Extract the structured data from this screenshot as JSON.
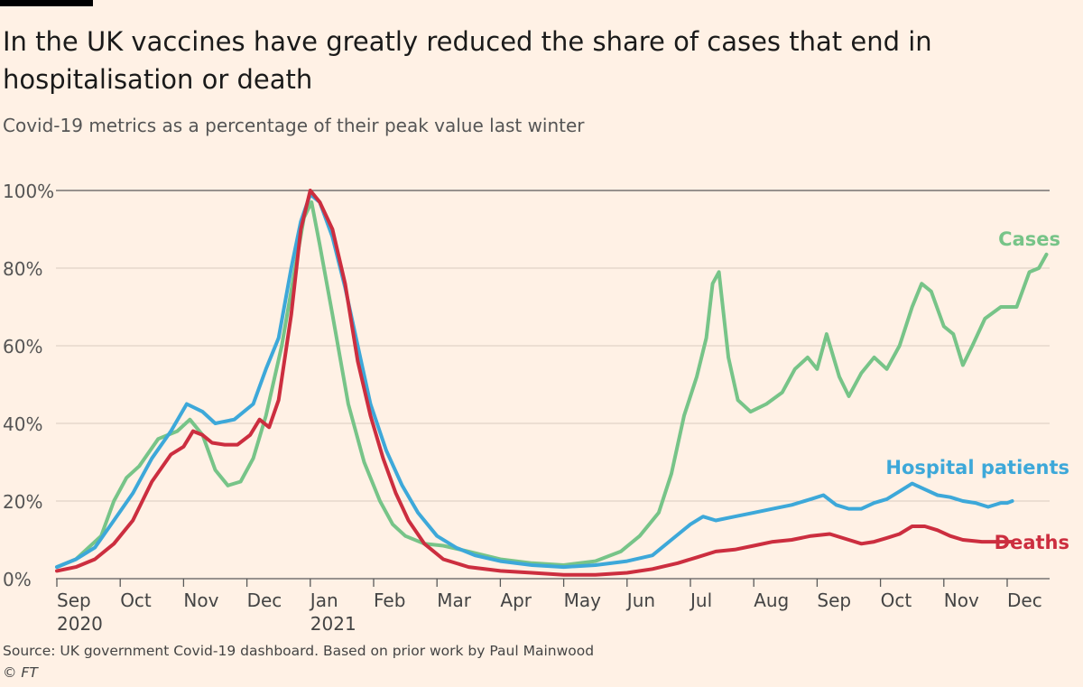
{
  "title": "In the UK vaccines have greatly reduced the share of cases that end in hospitalisation or death",
  "subtitle": "Covid-19 metrics as a percentage of their peak value last winter",
  "source": "Source: UK government Covid-19 dashboard. Based on prior work by Paul Mainwood",
  "credit": "© FT",
  "chart_data": {
    "type": "line",
    "x_unit": "month index (0 = 1 Sep 2020)",
    "xlim": [
      0,
      15.6
    ],
    "ylim": [
      0,
      100
    ],
    "grid": true,
    "y_ticks": [
      {
        "value": 0,
        "label": "0%"
      },
      {
        "value": 20,
        "label": "20%"
      },
      {
        "value": 40,
        "label": "40%"
      },
      {
        "value": 60,
        "label": "60%"
      },
      {
        "value": 80,
        "label": "80%"
      },
      {
        "value": 100,
        "label": "100%"
      }
    ],
    "x_ticks": [
      {
        "value": 0,
        "label": "Sep",
        "year": "2020"
      },
      {
        "value": 1,
        "label": "Oct"
      },
      {
        "value": 2,
        "label": "Nov"
      },
      {
        "value": 3,
        "label": "Dec"
      },
      {
        "value": 4,
        "label": "Jan",
        "year": "2021"
      },
      {
        "value": 5,
        "label": "Feb"
      },
      {
        "value": 6,
        "label": "Mar"
      },
      {
        "value": 7,
        "label": "Apr"
      },
      {
        "value": 8,
        "label": "May"
      },
      {
        "value": 9,
        "label": "Jun"
      },
      {
        "value": 10,
        "label": "Jul"
      },
      {
        "value": 11,
        "label": "Aug"
      },
      {
        "value": 12,
        "label": "Sep"
      },
      {
        "value": 13,
        "label": "Oct"
      },
      {
        "value": 14,
        "label": "Nov"
      },
      {
        "value": 15,
        "label": "Dec"
      }
    ],
    "series": [
      {
        "name": "Cases",
        "color": "#77C488",
        "label_position": "end-above",
        "points": [
          [
            0,
            3
          ],
          [
            0.3,
            5
          ],
          [
            0.7,
            11
          ],
          [
            0.9,
            20
          ],
          [
            1.1,
            26
          ],
          [
            1.3,
            29
          ],
          [
            1.6,
            36
          ],
          [
            1.9,
            38
          ],
          [
            2.1,
            41
          ],
          [
            2.3,
            37
          ],
          [
            2.5,
            28
          ],
          [
            2.7,
            24
          ],
          [
            2.9,
            25
          ],
          [
            3.1,
            31
          ],
          [
            3.3,
            42
          ],
          [
            3.55,
            60
          ],
          [
            3.75,
            79
          ],
          [
            3.9,
            93
          ],
          [
            4.02,
            97
          ],
          [
            4.15,
            86
          ],
          [
            4.35,
            68
          ],
          [
            4.6,
            45
          ],
          [
            4.85,
            30
          ],
          [
            5.1,
            20
          ],
          [
            5.3,
            14
          ],
          [
            5.5,
            11
          ],
          [
            5.8,
            9
          ],
          [
            6.1,
            8.5
          ],
          [
            6.5,
            7
          ],
          [
            7,
            5
          ],
          [
            7.5,
            4
          ],
          [
            8,
            3.5
          ],
          [
            8.5,
            4.5
          ],
          [
            8.9,
            7
          ],
          [
            9.2,
            11
          ],
          [
            9.5,
            17
          ],
          [
            9.7,
            27
          ],
          [
            9.9,
            42
          ],
          [
            10.1,
            52
          ],
          [
            10.25,
            62
          ],
          [
            10.35,
            76
          ],
          [
            10.45,
            79
          ],
          [
            10.6,
            57
          ],
          [
            10.75,
            46
          ],
          [
            10.95,
            43
          ],
          [
            11.2,
            45
          ],
          [
            11.45,
            48
          ],
          [
            11.65,
            54
          ],
          [
            11.85,
            57
          ],
          [
            12,
            54
          ],
          [
            12.15,
            63
          ],
          [
            12.35,
            52
          ],
          [
            12.5,
            47
          ],
          [
            12.7,
            53
          ],
          [
            12.9,
            57
          ],
          [
            13.1,
            54
          ],
          [
            13.3,
            60
          ],
          [
            13.5,
            70
          ],
          [
            13.65,
            76
          ],
          [
            13.8,
            74
          ],
          [
            14,
            65
          ],
          [
            14.15,
            63
          ],
          [
            14.3,
            55
          ],
          [
            14.45,
            60
          ],
          [
            14.65,
            67
          ],
          [
            14.9,
            70
          ],
          [
            15.15,
            70
          ],
          [
            15.35,
            79
          ],
          [
            15.5,
            80
          ],
          [
            15.62,
            83.5
          ]
        ]
      },
      {
        "name": "Hospital patients",
        "color": "#3DA8D9",
        "label_position": "end-above",
        "points": [
          [
            0,
            3
          ],
          [
            0.3,
            5
          ],
          [
            0.6,
            8
          ],
          [
            0.9,
            15
          ],
          [
            1.2,
            22
          ],
          [
            1.5,
            31
          ],
          [
            1.8,
            38
          ],
          [
            2.05,
            45
          ],
          [
            2.3,
            43
          ],
          [
            2.5,
            40
          ],
          [
            2.8,
            41
          ],
          [
            3.1,
            45
          ],
          [
            3.3,
            54
          ],
          [
            3.5,
            62
          ],
          [
            3.7,
            80
          ],
          [
            3.85,
            92
          ],
          [
            4,
            99
          ],
          [
            4.15,
            97
          ],
          [
            4.35,
            88
          ],
          [
            4.55,
            75
          ],
          [
            4.75,
            60
          ],
          [
            4.95,
            45
          ],
          [
            5.2,
            33
          ],
          [
            5.45,
            24
          ],
          [
            5.7,
            17
          ],
          [
            6,
            11
          ],
          [
            6.3,
            8
          ],
          [
            6.6,
            6
          ],
          [
            7,
            4.5
          ],
          [
            7.5,
            3.5
          ],
          [
            8,
            3
          ],
          [
            8.5,
            3.5
          ],
          [
            9,
            4.5
          ],
          [
            9.4,
            6
          ],
          [
            9.7,
            10
          ],
          [
            10,
            14
          ],
          [
            10.2,
            16
          ],
          [
            10.4,
            15
          ],
          [
            10.7,
            16
          ],
          [
            11,
            17
          ],
          [
            11.3,
            18
          ],
          [
            11.6,
            19
          ],
          [
            11.9,
            20.5
          ],
          [
            12.1,
            21.5
          ],
          [
            12.3,
            19
          ],
          [
            12.5,
            18
          ],
          [
            12.7,
            18
          ],
          [
            12.9,
            19.5
          ],
          [
            13.1,
            20.5
          ],
          [
            13.3,
            22.5
          ],
          [
            13.5,
            24.5
          ],
          [
            13.7,
            23
          ],
          [
            13.9,
            21.5
          ],
          [
            14.1,
            21
          ],
          [
            14.3,
            20
          ],
          [
            14.5,
            19.5
          ],
          [
            14.7,
            18.5
          ],
          [
            14.9,
            19.5
          ],
          [
            15,
            19.5
          ],
          [
            15.08,
            20
          ]
        ]
      },
      {
        "name": "Deaths",
        "color": "#CC2E3F",
        "label_position": "end-right",
        "points": [
          [
            0,
            2
          ],
          [
            0.3,
            3
          ],
          [
            0.6,
            5
          ],
          [
            0.9,
            9
          ],
          [
            1.2,
            15
          ],
          [
            1.5,
            25
          ],
          [
            1.8,
            32
          ],
          [
            2,
            34
          ],
          [
            2.15,
            38
          ],
          [
            2.3,
            37
          ],
          [
            2.45,
            35
          ],
          [
            2.65,
            34.5
          ],
          [
            2.85,
            34.5
          ],
          [
            3.05,
            37
          ],
          [
            3.2,
            41
          ],
          [
            3.35,
            39
          ],
          [
            3.5,
            46
          ],
          [
            3.7,
            68
          ],
          [
            3.85,
            90
          ],
          [
            4,
            100
          ],
          [
            4.15,
            97
          ],
          [
            4.35,
            90
          ],
          [
            4.55,
            76
          ],
          [
            4.75,
            56
          ],
          [
            4.95,
            42
          ],
          [
            5.15,
            31
          ],
          [
            5.35,
            22
          ],
          [
            5.55,
            15
          ],
          [
            5.8,
            9
          ],
          [
            6.1,
            5
          ],
          [
            6.5,
            3
          ],
          [
            7,
            2
          ],
          [
            7.5,
            1.5
          ],
          [
            8,
            1
          ],
          [
            8.5,
            1
          ],
          [
            9,
            1.5
          ],
          [
            9.4,
            2.5
          ],
          [
            9.8,
            4
          ],
          [
            10.1,
            5.5
          ],
          [
            10.4,
            7
          ],
          [
            10.7,
            7.5
          ],
          [
            11,
            8.5
          ],
          [
            11.3,
            9.5
          ],
          [
            11.6,
            10
          ],
          [
            11.9,
            11
          ],
          [
            12.2,
            11.5
          ],
          [
            12.5,
            10
          ],
          [
            12.7,
            9
          ],
          [
            12.9,
            9.5
          ],
          [
            13.1,
            10.5
          ],
          [
            13.3,
            11.5
          ],
          [
            13.5,
            13.5
          ],
          [
            13.7,
            13.5
          ],
          [
            13.9,
            12.5
          ],
          [
            14.1,
            11
          ],
          [
            14.3,
            10
          ],
          [
            14.6,
            9.5
          ],
          [
            14.9,
            9.5
          ],
          [
            15.08,
            9.5
          ]
        ]
      }
    ]
  }
}
